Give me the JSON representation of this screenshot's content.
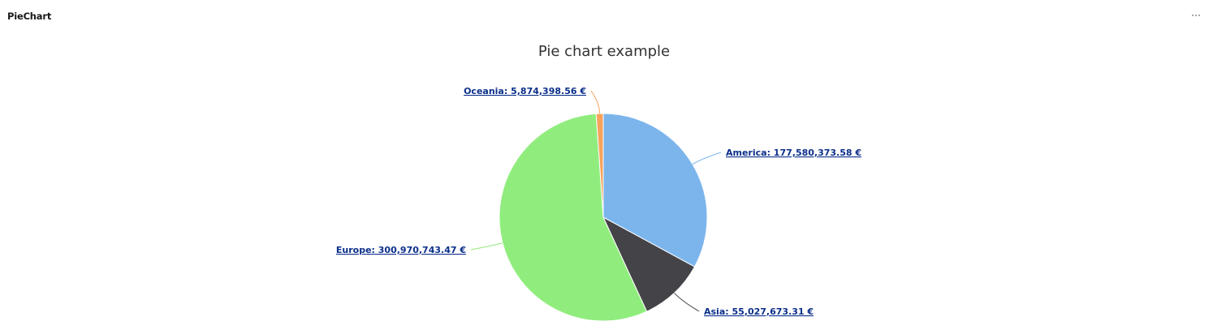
{
  "panel": {
    "title": "PieChart",
    "menu_icon": "more-horizontal-icon"
  },
  "chart_data": {
    "type": "pie",
    "title": "Pie chart example",
    "currency": "€",
    "slices": [
      {
        "name": "America",
        "value": 177580373.58,
        "label": "America: 177,580,373.58 €",
        "color": "#7cb5ec"
      },
      {
        "name": "Asia",
        "value": 55027673.31,
        "label": "Asia: 55,027,673.31 €",
        "color": "#434348"
      },
      {
        "name": "Europe",
        "value": 300970743.47,
        "label": "Europe: 300,970,743.47 €",
        "color": "#90ed7d"
      },
      {
        "name": "Oceania",
        "value": 5874398.56,
        "label": "Oceania: 5,874,398.56 €",
        "color": "#f7a35c"
      }
    ]
  }
}
